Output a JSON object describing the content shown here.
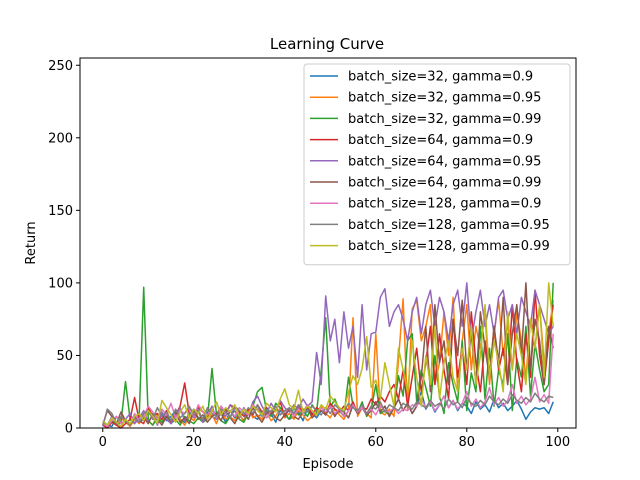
{
  "chart_data": {
    "type": "line",
    "title": "Learning Curve",
    "xlabel": "Episode",
    "ylabel": "Return",
    "xlim": [
      -5,
      104
    ],
    "ylim": [
      0,
      255
    ],
    "xticks": [
      0,
      20,
      40,
      60,
      80,
      100
    ],
    "yticks": [
      0,
      50,
      100,
      150,
      200,
      250
    ],
    "grid": false,
    "legend_position": "top-right",
    "series": [
      {
        "name": "batch_size=32, gamma=0.9",
        "color": "#1f77b4",
        "values": [
          4,
          2,
          1,
          8,
          3,
          5,
          2,
          9,
          4,
          6,
          11,
          7,
          3,
          10,
          5,
          8,
          12,
          6,
          4,
          9,
          13,
          7,
          5,
          11,
          8,
          6,
          10,
          4,
          12,
          7,
          9,
          5,
          13,
          8,
          6,
          11,
          7,
          10,
          4,
          12,
          9,
          6,
          8,
          11,
          5,
          14,
          10,
          7,
          12,
          9,
          15,
          8,
          13,
          11,
          7,
          16,
          10,
          14,
          9,
          12,
          18,
          11,
          15,
          8,
          14,
          20,
          12,
          17,
          10,
          15,
          25,
          13,
          18,
          11,
          16,
          22,
          14,
          19,
          12,
          17,
          15,
          10,
          18,
          13,
          16,
          11,
          20,
          14,
          17,
          12,
          15,
          19,
          13,
          6,
          11,
          14,
          13,
          14,
          10,
          18
        ]
      },
      {
        "name": "batch_size=32, gamma=0.95",
        "color": "#ff7f0e",
        "values": [
          3,
          1,
          5,
          2,
          7,
          4,
          1,
          6,
          3,
          8,
          5,
          2,
          9,
          4,
          7,
          3,
          10,
          6,
          2,
          8,
          5,
          11,
          4,
          7,
          9,
          3,
          12,
          6,
          8,
          5,
          10,
          4,
          13,
          7,
          9,
          6,
          11,
          5,
          8,
          14,
          7,
          10,
          6,
          12,
          9,
          5,
          8,
          11,
          15,
          10,
          7,
          13,
          9,
          6,
          12,
          76,
          8,
          14,
          10,
          7,
          65,
          11,
          9,
          13,
          8,
          47,
          89,
          12,
          82,
          88,
          60,
          70,
          85,
          30,
          45,
          80,
          50,
          90,
          25,
          60,
          85,
          40,
          70,
          55,
          78,
          30,
          65,
          88,
          50,
          72,
          40,
          80,
          60,
          35,
          75,
          55,
          85,
          45,
          65,
          88
        ]
      },
      {
        "name": "batch_size=32, gamma=0.99",
        "color": "#2ca02c",
        "values": [
          3,
          1,
          5,
          2,
          4,
          32,
          6,
          3,
          8,
          97,
          5,
          2,
          7,
          4,
          9,
          3,
          6,
          2,
          8,
          5,
          3,
          7,
          4,
          6,
          41,
          9,
          5,
          3,
          8,
          12,
          6,
          4,
          10,
          15,
          25,
          28,
          12,
          8,
          17,
          14,
          10,
          6,
          14,
          9,
          12,
          8,
          16,
          11,
          40,
          76,
          14,
          20,
          12,
          8,
          35,
          15,
          10,
          18,
          8,
          13,
          30,
          10,
          12,
          9,
          14,
          36,
          22,
          60,
          65,
          18,
          40,
          28,
          15,
          50,
          22,
          10,
          45,
          30,
          18,
          60,
          12,
          38,
          25,
          70,
          20,
          55,
          15,
          40,
          30,
          65,
          12,
          48,
          35,
          70,
          22,
          58,
          40,
          25,
          30,
          100
        ]
      },
      {
        "name": "batch_size=64, gamma=0.9",
        "color": "#d62728",
        "values": [
          2,
          0,
          4,
          2,
          0,
          3,
          6,
          21,
          5,
          3,
          14,
          8,
          10,
          6,
          12,
          4,
          9,
          15,
          31,
          10,
          8,
          14,
          11,
          8,
          12,
          9,
          15,
          10,
          16,
          14,
          11,
          8,
          13,
          9,
          16,
          11,
          14,
          10,
          12,
          18,
          8,
          13,
          10,
          15,
          11,
          16,
          9,
          14,
          12,
          10,
          17,
          13,
          11,
          15,
          12,
          18,
          10,
          14,
          13,
          20,
          16,
          22,
          18,
          25,
          30,
          20,
          40,
          15,
          35,
          55,
          25,
          45,
          70,
          30,
          65,
          40,
          20,
          75,
          35,
          55,
          30,
          80,
          45,
          25,
          60,
          35,
          70,
          40,
          55,
          30,
          85,
          45,
          25,
          65,
          35,
          95,
          50,
          30,
          60,
          85
        ]
      },
      {
        "name": "batch_size=64, gamma=0.95",
        "color": "#9467bd",
        "values": [
          5,
          2,
          8,
          4,
          1,
          6,
          10,
          3,
          7,
          12,
          4,
          9,
          2,
          11,
          6,
          3,
          8,
          14,
          5,
          10,
          7,
          13,
          4,
          9,
          15,
          6,
          11,
          8,
          16,
          12,
          7,
          14,
          9,
          18,
          22,
          15,
          10,
          17,
          12,
          19,
          14,
          11,
          16,
          13,
          20,
          15,
          18,
          52,
          30,
          91,
          60,
          75,
          45,
          80,
          55,
          70,
          35,
          85,
          40,
          65,
          66,
          90,
          96,
          70,
          80,
          85,
          75,
          60,
          80,
          90,
          65,
          85,
          95,
          70,
          90,
          80,
          60,
          85,
          95,
          70,
          100,
          60,
          80,
          95,
          70,
          85,
          65,
          90,
          95,
          75,
          85,
          65,
          90,
          80,
          70,
          95,
          85,
          75,
          65,
          70
        ]
      },
      {
        "name": "batch_size=64, gamma=0.99",
        "color": "#8c564b",
        "values": [
          2,
          12,
          8,
          3,
          11,
          5,
          2,
          9,
          4,
          7,
          3,
          10,
          6,
          2,
          8,
          5,
          11,
          4,
          7,
          3,
          12,
          6,
          9,
          4,
          8,
          10,
          5,
          13,
          7,
          3,
          9,
          11,
          6,
          14,
          8,
          4,
          10,
          12,
          7,
          5,
          9,
          13,
          8,
          6,
          11,
          14,
          7,
          10,
          12,
          9,
          15,
          8,
          13,
          11,
          7,
          16,
          10,
          14,
          9,
          12,
          18,
          11,
          15,
          8,
          14,
          20,
          12,
          17,
          10,
          15,
          35,
          70,
          25,
          85,
          45,
          60,
          30,
          75,
          50,
          88,
          40,
          65,
          30,
          80,
          55,
          35,
          70,
          45,
          90,
          30,
          65,
          85,
          50,
          100,
          40,
          75,
          60,
          30,
          70,
          55
        ]
      },
      {
        "name": "batch_size=128, gamma=0.9",
        "color": "#e377c2",
        "values": [
          3,
          1,
          5,
          8,
          3,
          6,
          2,
          10,
          5,
          8,
          15,
          11,
          6,
          13,
          9,
          17,
          7,
          12,
          10,
          14,
          8,
          16,
          11,
          9,
          13,
          7,
          15,
          10,
          12,
          8,
          14,
          11,
          9,
          16,
          13,
          10,
          7,
          12,
          15,
          9,
          11,
          14,
          8,
          13,
          10,
          16,
          12,
          9,
          14,
          11,
          15,
          10,
          13,
          8,
          12,
          16,
          11,
          14,
          10,
          13,
          9,
          15,
          12,
          11,
          14,
          10,
          13,
          12,
          16,
          15,
          20,
          14,
          18,
          12,
          16,
          22,
          14,
          19,
          13,
          17,
          25,
          15,
          20,
          14,
          18,
          28,
          16,
          21,
          15,
          19,
          30,
          17,
          22,
          16,
          20,
          35,
          18,
          23,
          17,
          65
        ]
      },
      {
        "name": "batch_size=128, gamma=0.95",
        "color": "#7f7f7f",
        "values": [
          1,
          13,
          10,
          3,
          8,
          5,
          2,
          7,
          4,
          10,
          12,
          6,
          14,
          8,
          11,
          5,
          13,
          7,
          10,
          15,
          9,
          12,
          6,
          14,
          10,
          8,
          13,
          11,
          7,
          15,
          12,
          9,
          14,
          10,
          16,
          8,
          13,
          11,
          15,
          9,
          12,
          14,
          10,
          16,
          13,
          11,
          15,
          12,
          9,
          14,
          10,
          16,
          13,
          11,
          17,
          14,
          12,
          16,
          10,
          15,
          13,
          18,
          11,
          16,
          14,
          12,
          17,
          15,
          13,
          18,
          16,
          14,
          19,
          15,
          17,
          13,
          20,
          16,
          18,
          14,
          21,
          17,
          15,
          19,
          16,
          22,
          18,
          16,
          20,
          17,
          23,
          19,
          17,
          21,
          18,
          24,
          20,
          18,
          22,
          21
        ]
      },
      {
        "name": "batch_size=128, gamma=0.99",
        "color": "#bcbd22",
        "values": [
          5,
          2,
          7,
          4,
          1,
          6,
          3,
          8,
          10,
          5,
          12,
          8,
          3,
          19,
          14,
          9,
          4,
          11,
          16,
          7,
          13,
          10,
          15,
          6,
          12,
          18,
          9,
          14,
          11,
          16,
          8,
          13,
          10,
          15,
          12,
          9,
          17,
          14,
          11,
          20,
          27,
          16,
          13,
          26,
          11,
          15,
          12,
          9,
          16,
          13,
          22,
          18,
          14,
          12,
          25,
          36,
          30,
          41,
          63,
          28,
          33,
          20,
          45,
          30,
          15,
          55,
          40,
          25,
          60,
          35,
          15,
          50,
          30,
          70,
          20,
          45,
          60,
          35,
          25,
          55,
          40,
          70,
          30,
          50,
          85,
          35,
          60,
          45,
          25,
          80,
          40,
          65,
          50,
          30,
          75,
          55,
          85,
          35,
          100,
          70
        ]
      }
    ]
  }
}
